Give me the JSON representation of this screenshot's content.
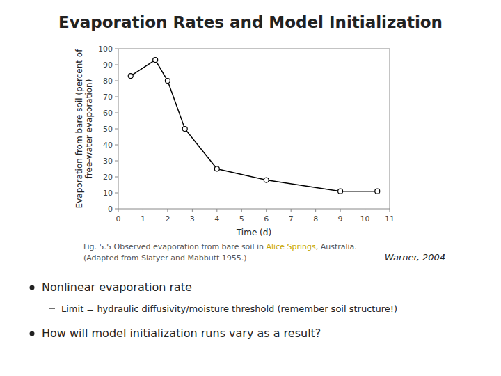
{
  "chart_data": {
    "type": "line",
    "title": "Evaporation Rates and Model Initialization",
    "xlabel": "Time (d)",
    "ylabel": "Evaporation from bare soil (percent of free-water evaporation)",
    "x": [
      0.5,
      1.5,
      2.0,
      2.7,
      4.0,
      6.0,
      9.0,
      10.5
    ],
    "values": [
      83,
      93,
      80,
      50,
      25,
      18,
      11,
      11
    ],
    "color": "black",
    "marker": "circle",
    "xlim": [
      0,
      11
    ],
    "ylim": [
      0,
      100
    ],
    "xticks": [
      0,
      1,
      2,
      3,
      4,
      5,
      6,
      7,
      8,
      9,
      10,
      11
    ],
    "yticks": [
      0,
      10,
      20,
      30,
      40,
      50,
      60,
      70,
      80,
      90,
      100
    ],
    "grid": false,
    "caption": [
      {
        "text": "Fig. 5.5  Observed evaporation from bare soil in "
      },
      {
        "text": "Alice Springs",
        "color": "#c8a800"
      },
      {
        "text": ", Australia."
      }
    ],
    "source": "(Adapted from Slatyer and Mabbutt 1955.)",
    "credit": "Warner, 2004",
    "bullets": [
      {
        "text": "Nonlinear evaporation rate",
        "sub": [
          "Limit = hydraulic diffusivity/moisture threshold (remember soil structure!)"
        ]
      },
      {
        "text": "How will model initialization runs vary as a result?"
      }
    ]
  }
}
